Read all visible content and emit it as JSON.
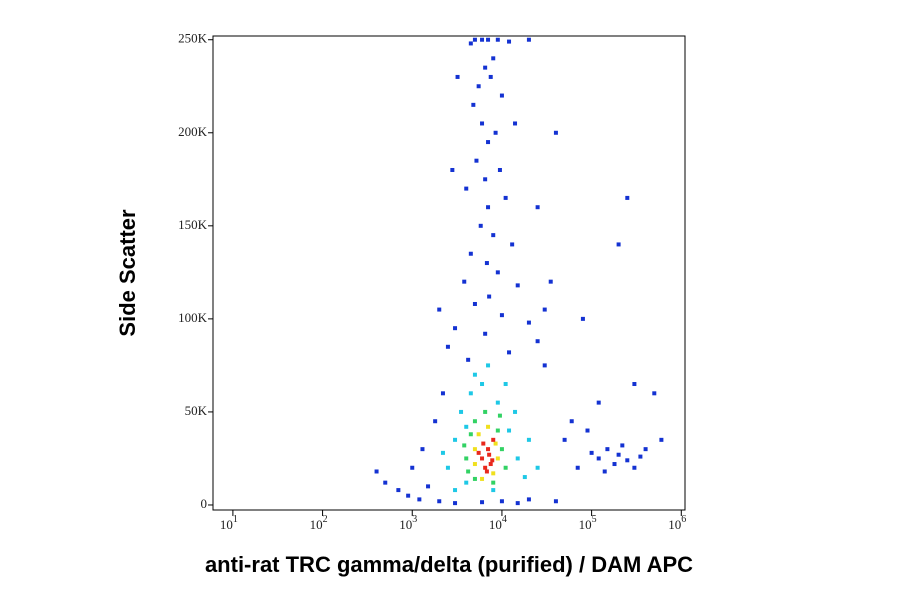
{
  "chart_data": {
    "type": "scatter",
    "log_x": true,
    "xlabel": "anti-rat TRC gamma/delta (purified) / DAM APC",
    "ylabel": "Side Scatter",
    "xlim": [
      6,
      1100000
    ],
    "ylim": [
      -2700,
      252000
    ],
    "xticks": [
      {
        "value": 10,
        "label": "10",
        "exponent": "1"
      },
      {
        "value": 100,
        "label": "10",
        "exponent": "2"
      },
      {
        "value": 1000,
        "label": "10",
        "exponent": "3"
      },
      {
        "value": 10000,
        "label": "10",
        "exponent": "4"
      },
      {
        "value": 100000,
        "label": "10",
        "exponent": "5"
      },
      {
        "value": 1000000,
        "label": "10",
        "exponent": "6"
      }
    ],
    "yticks": [
      0,
      {
        "value": 50000,
        "label": "50K"
      },
      {
        "value": 100000,
        "label": "100K"
      },
      {
        "value": 150000,
        "label": "150K"
      },
      {
        "value": 200000,
        "label": "200K"
      },
      {
        "value": 250000,
        "label": "250K"
      }
    ],
    "series": [
      {
        "color": "#1432d2",
        "x": [
          5000,
          6000,
          7000,
          9000,
          12000,
          4500,
          20000,
          8000,
          6500,
          5500,
          7500,
          10000,
          4800,
          6000,
          8500,
          7000,
          5200,
          9500,
          6500,
          4000,
          11000,
          7000,
          5800,
          8000,
          13000,
          4500,
          6800,
          9000,
          3800,
          15000,
          7200,
          5000,
          10000,
          20000,
          3000,
          6500,
          25000,
          2500,
          12000,
          4200,
          30000,
          35000,
          25000,
          40000,
          30000,
          2800,
          3200,
          14000,
          2000,
          100000,
          120000,
          150000,
          180000,
          200000,
          250000,
          300000,
          350000,
          220000,
          140000,
          90000,
          60000,
          50000,
          70000,
          400000,
          600000,
          300000,
          500000,
          120000,
          80000,
          250000,
          200000,
          400,
          500,
          700,
          900,
          1200,
          1500,
          1000,
          2000,
          3000,
          6000,
          10000,
          20000,
          40000,
          15000,
          1800,
          2200,
          1300
        ],
        "y": [
          250000,
          250000,
          250000,
          250000,
          249000,
          248000,
          250000,
          240000,
          235000,
          225000,
          230000,
          220000,
          215000,
          205000,
          200000,
          195000,
          185000,
          180000,
          175000,
          170000,
          165000,
          160000,
          150000,
          145000,
          140000,
          135000,
          130000,
          125000,
          120000,
          118000,
          112000,
          108000,
          102000,
          98000,
          95000,
          92000,
          88000,
          85000,
          82000,
          78000,
          75000,
          120000,
          160000,
          200000,
          105000,
          180000,
          230000,
          205000,
          105000,
          28000,
          25000,
          30000,
          22000,
          27000,
          24000,
          20000,
          26000,
          32000,
          18000,
          40000,
          45000,
          35000,
          20000,
          30000,
          35000,
          65000,
          60000,
          55000,
          100000,
          165000,
          140000,
          18000,
          12000,
          8000,
          5000,
          3000,
          10000,
          20000,
          2000,
          1000,
          1500,
          2000,
          3000,
          2000,
          1000,
          45000,
          60000,
          30000
        ]
      },
      {
        "color": "#1ec8e6",
        "x": [
          2500,
          3000,
          3500,
          4000,
          4500,
          5000,
          9000,
          12000,
          15000,
          18000,
          3000,
          8000,
          6000,
          11000,
          2200,
          20000,
          14000,
          4000,
          7000,
          25000
        ],
        "y": [
          20000,
          35000,
          50000,
          12000,
          60000,
          70000,
          55000,
          40000,
          25000,
          15000,
          8000,
          8000,
          65000,
          65000,
          28000,
          35000,
          50000,
          42000,
          75000,
          20000
        ]
      },
      {
        "color": "#32d264",
        "x": [
          4000,
          4500,
          5000,
          9000,
          10000,
          11000,
          5000,
          8000,
          4200,
          9500,
          6500,
          3800
        ],
        "y": [
          25000,
          38000,
          45000,
          40000,
          30000,
          20000,
          14000,
          12000,
          18000,
          48000,
          50000,
          32000
        ]
      },
      {
        "color": "#f0e01e",
        "x": [
          5000,
          5500,
          8500,
          9000,
          6000,
          8000,
          5000,
          7000
        ],
        "y": [
          30000,
          38000,
          33000,
          25000,
          14000,
          17000,
          22000,
          42000
        ]
      },
      {
        "color": "#e8281c",
        "x": [
          6000,
          7000,
          6500,
          7500,
          5500,
          8000,
          6800,
          7200,
          6200,
          7800
        ],
        "y": [
          25000,
          30000,
          20000,
          22000,
          28000,
          35000,
          18000,
          27000,
          33000,
          24000
        ]
      }
    ]
  }
}
